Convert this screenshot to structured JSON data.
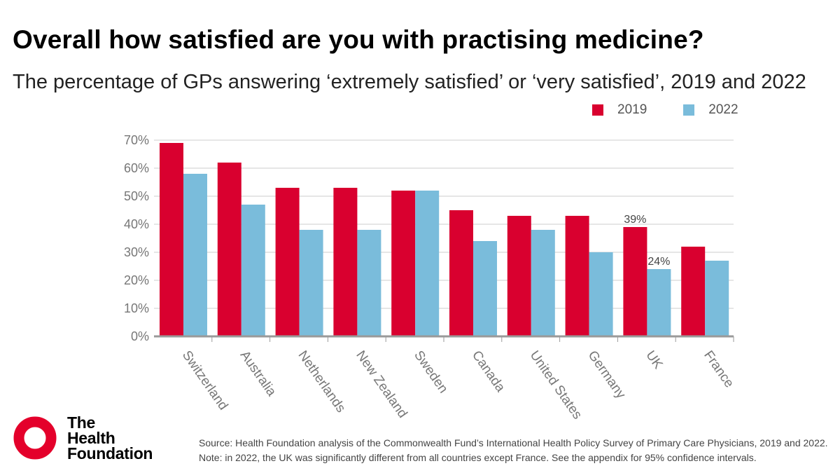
{
  "header": {
    "title": "Overall how satisfied are you with practising medicine?",
    "subtitle": "The percentage of GPs answering ‘extremely satisfied’ or ‘very satisfied’, 2019 and 2022"
  },
  "colors": {
    "series_2019": "#d9002f",
    "series_2022": "#7abcdb",
    "grid": "#e6e6e6",
    "axis": "#9a9a9a",
    "tick_text": "#777777"
  },
  "chart_data": {
    "type": "bar",
    "categories": [
      "Switzerland",
      "Australia",
      "Netherlands",
      "New Zealand",
      "Sweden",
      "Canada",
      "United States",
      "Germany",
      "UK",
      "France"
    ],
    "series": [
      {
        "name": "2019",
        "values": [
          69,
          62,
          53,
          53,
          52,
          45,
          43,
          43,
          39,
          32
        ]
      },
      {
        "name": "2022",
        "values": [
          58,
          47,
          38,
          38,
          52,
          34,
          38,
          30,
          24,
          27
        ]
      }
    ],
    "y_ticks": [
      "0%",
      "10%",
      "20%",
      "30%",
      "40%",
      "50%",
      "60%",
      "70%"
    ],
    "ylim": [
      0,
      70
    ],
    "data_labels": [
      {
        "category": "UK",
        "series": "2019",
        "text": "39%"
      },
      {
        "category": "UK",
        "series": "2022",
        "text": "24%"
      }
    ],
    "legend_position": "top-right",
    "grid": true
  },
  "footer": {
    "logo_line1": "The",
    "logo_line2": "Health",
    "logo_line3": "Foundation",
    "source": "Source: Health Foundation analysis of the Commonwealth Fund’s International Health Policy Survey of Primary Care Physicians, 2019 and 2022. Note: in 2022, the UK was significantly different from all countries except France. See the appendix for 95% confidence intervals."
  }
}
